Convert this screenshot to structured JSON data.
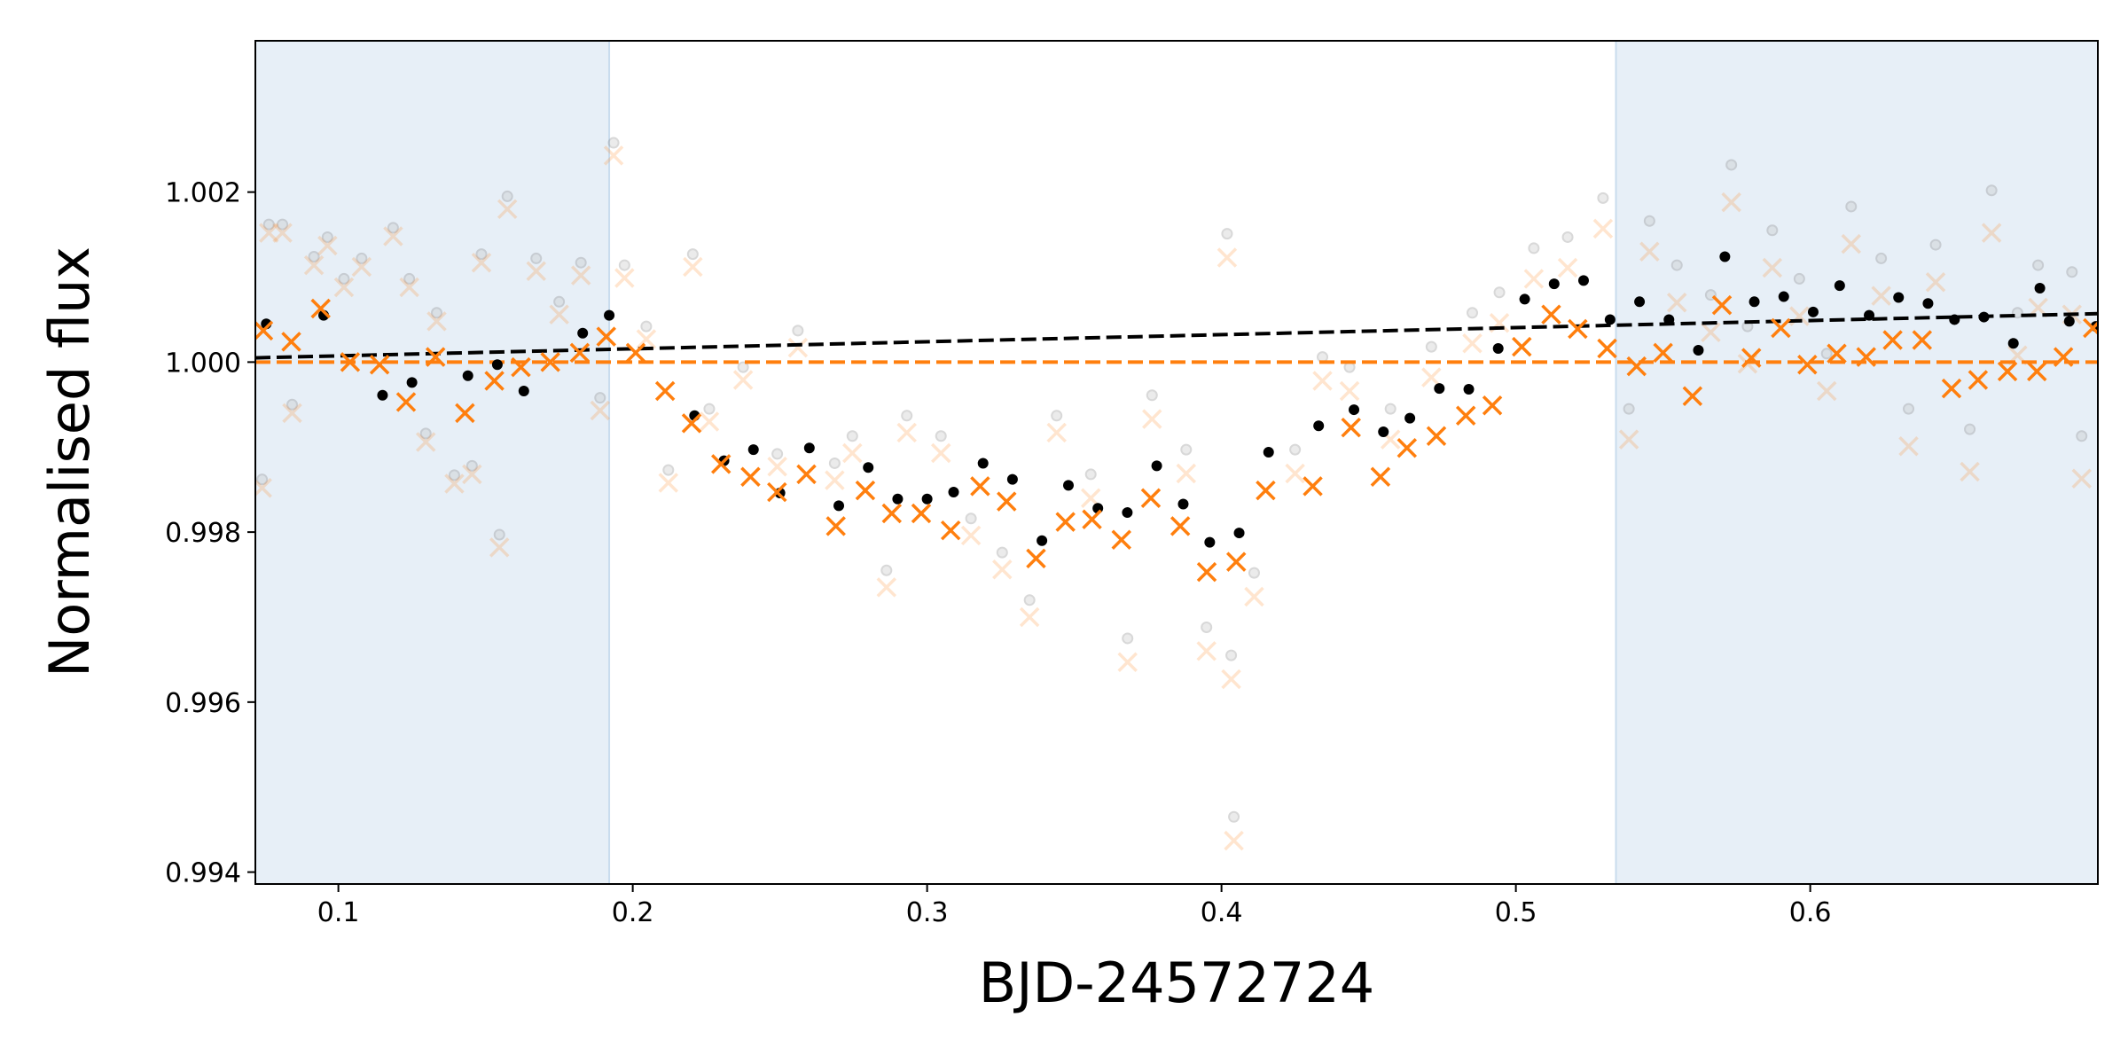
{
  "chart_data": {
    "type": "scatter",
    "xlabel": "BJD-24572724",
    "ylabel": "Normalised flux",
    "xlim": [
      0.0718,
      0.6977
    ],
    "ylim": [
      0.99386,
      1.00378
    ],
    "xticks": [
      0.1,
      0.2,
      0.3,
      0.4,
      0.5,
      0.6
    ],
    "yticks": [
      0.994,
      0.996,
      0.998,
      {
        "value": 1,
        "label": "1.000"
      },
      1.002
    ],
    "spans": [
      {
        "xlim": [
          0.0718,
          0.192
        ],
        "color": "#e7eff7"
      },
      {
        "xlim": [
          0.534,
          0.6977
        ],
        "color": "#e7eff7"
      }
    ],
    "series": [
      {
        "color": "#7f7f7f",
        "marker": "o",
        "alpha": 0.3,
        "x": [
          0.0741,
          0.0764,
          0.081,
          0.0843,
          0.0917,
          0.0963,
          0.1019,
          0.1079,
          0.1186,
          0.1241,
          0.1297,
          0.1334,
          0.1394,
          0.1454,
          0.1486,
          0.1547,
          0.1574,
          0.1672,
          0.175,
          0.1824,
          0.1889,
          0.1935,
          0.1972,
          0.2046,
          0.2121,
          0.2204,
          0.226,
          0.2375,
          0.2491,
          0.2561,
          0.2686,
          0.2746,
          0.2862,
          0.2931,
          0.3047,
          0.3149,
          0.3255,
          0.3348,
          0.344,
          0.3556,
          0.3681,
          0.3764,
          0.388,
          0.3949,
          0.4019,
          0.4033,
          0.4042,
          0.4111,
          0.425,
          0.4343,
          0.4435,
          0.4574,
          0.4713,
          0.4852,
          0.4944,
          0.5061,
          0.5176,
          0.5296,
          0.5384,
          0.5454,
          0.5547,
          0.5662,
          0.5732,
          0.5787,
          0.5871,
          0.5963,
          0.6056,
          0.6139,
          0.6241,
          0.6334,
          0.6426,
          0.6542,
          0.6616,
          0.6704,
          0.6774,
          0.6889,
          0.6922
        ],
        "values": [
          0.99862,
          1.00162,
          1.00162,
          0.9995,
          1.00124,
          1.00147,
          1.00098,
          1.00122,
          1.00158,
          1.00098,
          0.99916,
          1.00058,
          0.99867,
          0.99878,
          1.00127,
          0.99797,
          1.00195,
          1.00122,
          1.00071,
          1.00117,
          0.99958,
          1.00258,
          1.00114,
          1.00042,
          0.99873,
          1.00127,
          0.99945,
          0.99994,
          0.99892,
          1.00037,
          0.99881,
          0.99913,
          0.99755,
          0.99937,
          0.99913,
          0.99816,
          0.99776,
          0.9972,
          0.99937,
          0.99868,
          0.99675,
          0.99961,
          0.99897,
          0.99688,
          1.00151,
          0.99655,
          0.99465,
          0.99752,
          0.99897,
          1.00006,
          0.99994,
          0.99945,
          1.00018,
          1.00058,
          1.00082,
          1.00134,
          1.00147,
          1.00193,
          0.99945,
          1.00166,
          1.00114,
          1.00079,
          1.00232,
          1.00042,
          1.00155,
          1.00098,
          1.0001,
          1.00183,
          1.00122,
          0.99945,
          1.00138,
          0.99921,
          1.00202,
          1.00058,
          1.00114,
          1.00106,
          0.99913
        ]
      },
      {
        "color": "#ff7f0e",
        "marker": "x",
        "alpha": 0.2,
        "x": [
          0.0741,
          0.0764,
          0.081,
          0.0843,
          0.0917,
          0.0963,
          0.1019,
          0.1079,
          0.1186,
          0.1241,
          0.1297,
          0.1334,
          0.1394,
          0.1454,
          0.1486,
          0.1547,
          0.1574,
          0.1672,
          0.175,
          0.1824,
          0.1889,
          0.1935,
          0.1972,
          0.2046,
          0.2121,
          0.2204,
          0.226,
          0.2375,
          0.2491,
          0.2561,
          0.2686,
          0.2746,
          0.2862,
          0.2931,
          0.3047,
          0.3149,
          0.3255,
          0.3348,
          0.344,
          0.3556,
          0.3681,
          0.3764,
          0.388,
          0.3949,
          0.4019,
          0.4033,
          0.4042,
          0.4111,
          0.425,
          0.4343,
          0.4435,
          0.4574,
          0.4713,
          0.4852,
          0.4944,
          0.5061,
          0.5176,
          0.5296,
          0.5384,
          0.5454,
          0.5547,
          0.5662,
          0.5732,
          0.5787,
          0.5871,
          0.5963,
          0.6056,
          0.6139,
          0.6241,
          0.6334,
          0.6426,
          0.6542,
          0.6616,
          0.6704,
          0.6774,
          0.6889,
          0.6922
        ],
        "values": [
          0.99852,
          1.00152,
          1.00152,
          0.9994,
          1.00114,
          1.00137,
          1.00088,
          1.00112,
          1.00148,
          1.00088,
          0.99906,
          1.00048,
          0.99857,
          0.99868,
          1.00117,
          0.99782,
          1.0018,
          1.00107,
          1.00056,
          1.00102,
          0.99943,
          1.00243,
          1.00099,
          1.00027,
          0.99858,
          1.00112,
          0.9993,
          0.99979,
          0.99877,
          1.00017,
          0.99861,
          0.99893,
          0.99735,
          0.99917,
          0.99893,
          0.99796,
          0.99756,
          0.997,
          0.99917,
          0.9984,
          0.99647,
          0.99933,
          0.99869,
          0.9966,
          1.00123,
          0.99627,
          0.99437,
          0.99724,
          0.99869,
          0.99978,
          0.99966,
          0.99909,
          0.99982,
          1.00022,
          1.00046,
          1.00098,
          1.00111,
          1.00157,
          0.99909,
          1.0013,
          1.0007,
          1.00035,
          1.00188,
          0.99998,
          1.00111,
          1.00054,
          0.99966,
          1.00139,
          1.00078,
          0.99901,
          1.00094,
          0.99871,
          1.00152,
          1.00008,
          1.00064,
          1.00056,
          0.99863
        ]
      },
      {
        "color": "#000000",
        "linestyle": "dashed",
        "x": [
          0.0718,
          0.6977
        ],
        "values": [
          1.00005,
          1.00057
        ]
      },
      {
        "color": "#ff7f0e",
        "linestyle": "dashed",
        "x": [
          0.0718,
          0.6977
        ],
        "values": [
          1.0,
          1.0
        ]
      },
      {
        "color": "#000000",
        "marker": "o",
        "alpha": 1,
        "x": [
          0.0755,
          0.095,
          0.115,
          0.125,
          0.144,
          0.154,
          0.163,
          0.183,
          0.192,
          0.221,
          0.231,
          0.241,
          0.25,
          0.26,
          0.27,
          0.28,
          0.29,
          0.3,
          0.309,
          0.319,
          0.329,
          0.339,
          0.348,
          0.358,
          0.368,
          0.378,
          0.387,
          0.396,
          0.406,
          0.416,
          0.433,
          0.445,
          0.455,
          0.464,
          0.474,
          0.484,
          0.494,
          0.503,
          0.513,
          0.523,
          0.532,
          0.542,
          0.552,
          0.562,
          0.571,
          0.581,
          0.591,
          0.601,
          0.61,
          0.62,
          0.63,
          0.64,
          0.649,
          0.659,
          0.669,
          0.678,
          0.688,
          0.697
        ],
        "values": [
          1.00045,
          1.00055,
          0.99961,
          0.99976,
          0.99984,
          0.99997,
          0.99966,
          1.00034,
          1.00055,
          0.99937,
          0.99884,
          0.99897,
          0.99846,
          0.99899,
          0.99831,
          0.99876,
          0.99839,
          0.99839,
          0.99847,
          0.99881,
          0.99862,
          0.9979,
          0.99855,
          0.99828,
          0.99823,
          0.99878,
          0.99833,
          0.99788,
          0.99799,
          0.99894,
          0.99925,
          0.99944,
          0.99918,
          0.99934,
          0.99969,
          0.99968,
          1.00016,
          1.00074,
          1.00092,
          1.00096,
          1.0005,
          1.00071,
          1.0005,
          1.00014,
          1.00124,
          1.00071,
          1.00077,
          1.00059,
          1.0009,
          1.00055,
          1.00076,
          1.00069,
          1.0005,
          1.00053,
          1.00022,
          1.00087,
          1.00048,
          1.00042
        ]
      },
      {
        "color": "#ff7f0e",
        "marker": "x",
        "alpha": 1,
        "x": [
          0.0745,
          0.084,
          0.094,
          0.104,
          0.114,
          0.123,
          0.133,
          0.143,
          0.153,
          0.162,
          0.172,
          0.182,
          0.191,
          0.201,
          0.211,
          0.22,
          0.23,
          0.24,
          0.249,
          0.259,
          0.269,
          0.279,
          0.288,
          0.298,
          0.308,
          0.318,
          0.327,
          0.337,
          0.347,
          0.356,
          0.366,
          0.376,
          0.386,
          0.395,
          0.405,
          0.415,
          0.431,
          0.444,
          0.454,
          0.463,
          0.473,
          0.483,
          0.492,
          0.502,
          0.512,
          0.521,
          0.531,
          0.541,
          0.55,
          0.56,
          0.57,
          0.58,
          0.59,
          0.599,
          0.609,
          0.619,
          0.628,
          0.638,
          0.648,
          0.657,
          0.667,
          0.677,
          0.686,
          0.696
        ],
        "values": [
          1.00037,
          1.00024,
          1.00063,
          1.0,
          0.99997,
          0.99953,
          1.00006,
          0.9994,
          0.99978,
          0.99994,
          1.0,
          1.00011,
          1.0003,
          1.00011,
          0.99966,
          0.99928,
          0.9988,
          0.99865,
          0.99847,
          0.99868,
          0.99807,
          0.99849,
          0.99822,
          0.99822,
          0.99802,
          0.99854,
          0.99836,
          0.99769,
          0.99812,
          0.99815,
          0.99791,
          0.9984,
          0.99807,
          0.99753,
          0.99765,
          0.99849,
          0.99854,
          0.99923,
          0.99865,
          0.99899,
          0.99913,
          0.99937,
          0.99949,
          1.00018,
          1.00056,
          1.00039,
          1.00016,
          0.99995,
          1.00011,
          0.9996,
          1.00067,
          1.00005,
          1.0004,
          0.99997,
          1.0001,
          1.00006,
          1.00026,
          1.00026,
          0.99969,
          0.99979,
          0.99989,
          0.99989,
          1.00006,
          1.0004
        ]
      }
    ]
  }
}
